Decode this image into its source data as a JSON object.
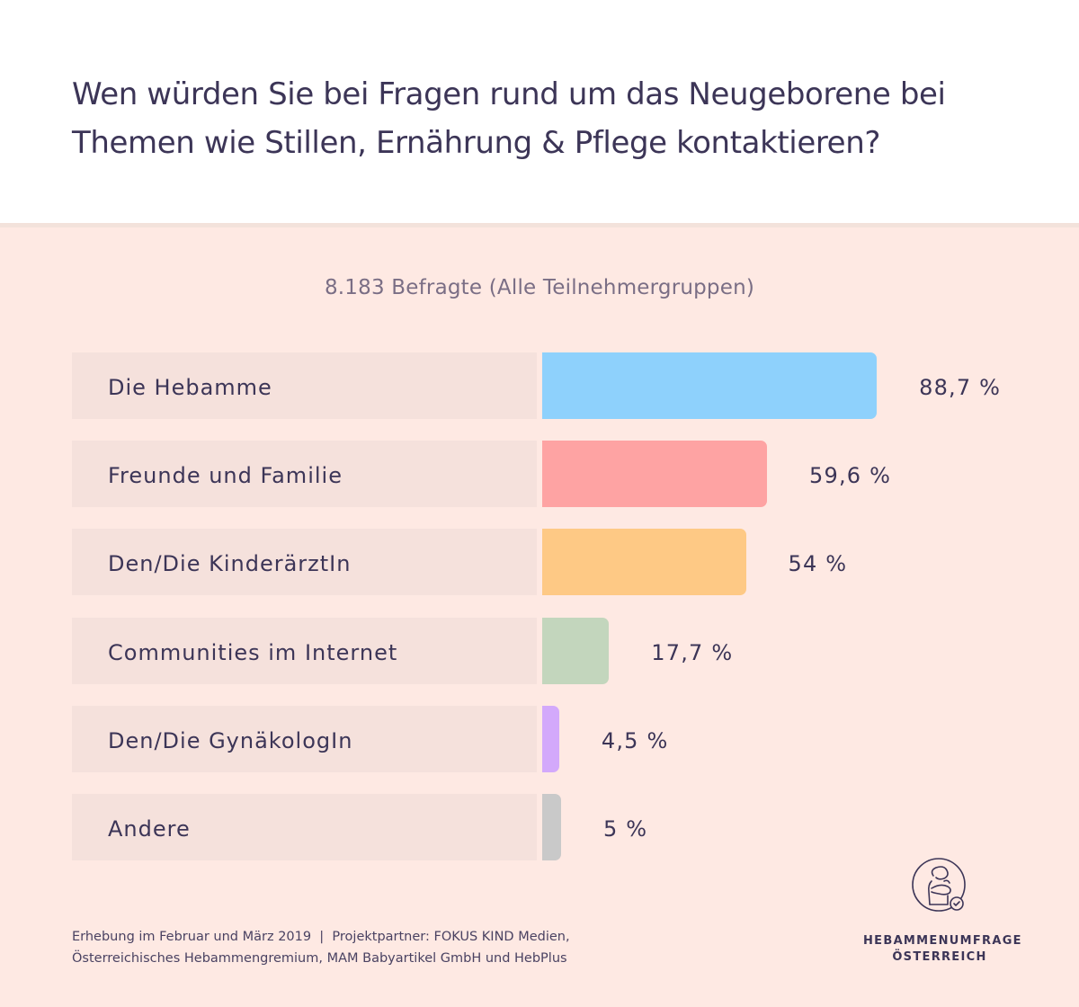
{
  "header": {
    "title_line1": "Wen würden Sie bei Fragen rund um das Neugeborene bei",
    "title_line2": "Themen wie Stillen, Ernährung & Pflege kontaktieren?"
  },
  "subtitle": "8.183 Befragte (Alle Teilnehmergruppen)",
  "chart_data": {
    "type": "bar",
    "orientation": "horizontal",
    "title": "Wen würden Sie bei Fragen rund um das Neugeborene bei Themen wie Stillen, Ernährung & Pflege kontaktieren?",
    "subtitle": "8.183 Befragte (Alle Teilnehmergruppen)",
    "xlabel": "",
    "ylabel": "",
    "unit": "%",
    "grid": false,
    "categories": [
      "Die Hebamme",
      "Freunde und Familie",
      "Den/Die KinderärztIn",
      "Communities im Internet",
      "Den/Die GynäkologIn",
      "Andere"
    ],
    "values": [
      88.7,
      59.6,
      54,
      17.7,
      4.5,
      5
    ],
    "value_labels": [
      "88,7 %",
      "59,6 %",
      "54 %",
      "17,7 %",
      "4,5 %",
      "5 %"
    ],
    "colors": [
      "#8ed1fc",
      "#fea3a3",
      "#fec985",
      "#c3d6bd",
      "#d3a9fb",
      "#c9c9c9"
    ]
  },
  "footer": {
    "line1": "Erhebung im Februar und März 2019  |  Projektpartner: FOKUS KIND Medien,",
    "line2": "Österreichisches Hebammengremium, MAM Babyartikel GmbH und HebPlus"
  },
  "logo": {
    "icon": "mother-with-baby-check-icon",
    "line1": "HEBAMMENUMFRAGE",
    "line2": "ÖSTERREICH"
  },
  "colors": {
    "text": "#3c3557",
    "background": "#fee9e3",
    "label_box": "#f5e1dc",
    "header_background": "#ffffff"
  }
}
